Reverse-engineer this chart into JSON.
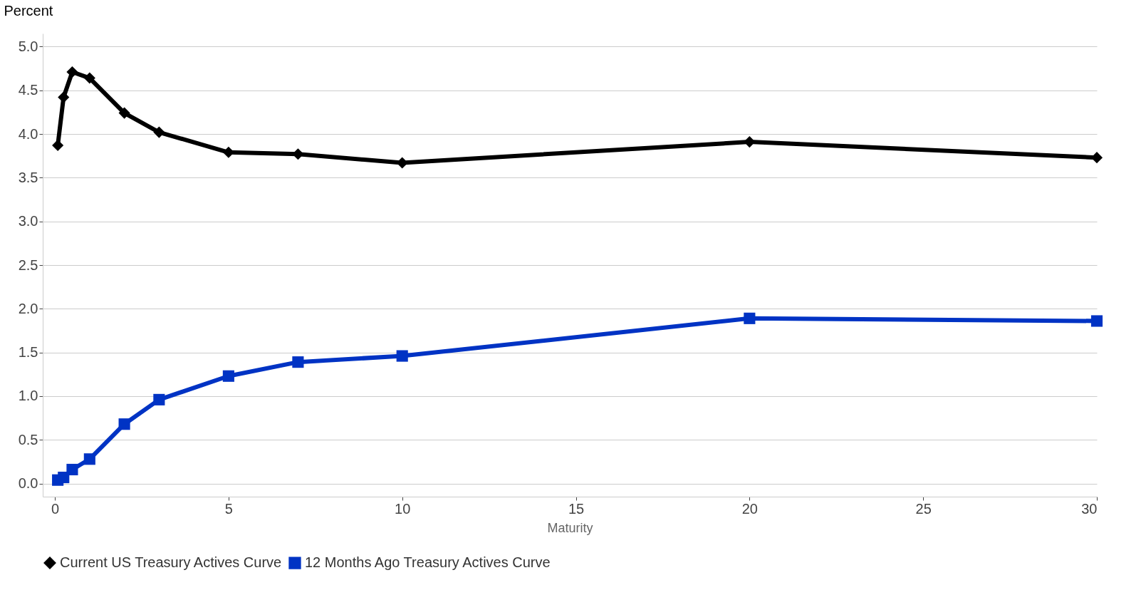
{
  "chart_data": {
    "type": "line",
    "ylabel": "Percent",
    "xlabel": "Maturity",
    "x": [
      0.083,
      0.25,
      0.5,
      1,
      2,
      3,
      5,
      7,
      10,
      20,
      30
    ],
    "series": [
      {
        "name": "Current US Treasury Actives Curve",
        "color": "#000000",
        "marker": "diamond",
        "values": [
          3.87,
          4.42,
          4.71,
          4.64,
          4.24,
          4.02,
          3.79,
          3.77,
          3.67,
          3.91,
          3.73
        ]
      },
      {
        "name": "12 Months Ago Treasury Actives Curve",
        "color": "#0033c4",
        "marker": "square",
        "values": [
          0.04,
          0.07,
          0.16,
          0.28,
          0.68,
          0.96,
          1.23,
          1.39,
          1.46,
          1.89,
          1.86
        ]
      }
    ],
    "xlim": [
      -0.35,
      30
    ],
    "xticks": [
      0,
      5,
      10,
      15,
      20,
      25,
      30
    ],
    "ylim": [
      -0.15,
      5.15
    ],
    "yticks": [
      {
        "value": 0,
        "label": "0.0"
      },
      0.5,
      {
        "value": 1,
        "label": "1.0"
      },
      1.5,
      {
        "value": 2,
        "label": "2.0"
      },
      2.5,
      {
        "value": 3,
        "label": "3.0"
      },
      3.5,
      {
        "value": 4,
        "label": "4.0"
      },
      4.5,
      {
        "value": 5,
        "label": "5.0"
      }
    ],
    "grid": "y",
    "legend": "bottom left",
    "line_style": "solid"
  }
}
